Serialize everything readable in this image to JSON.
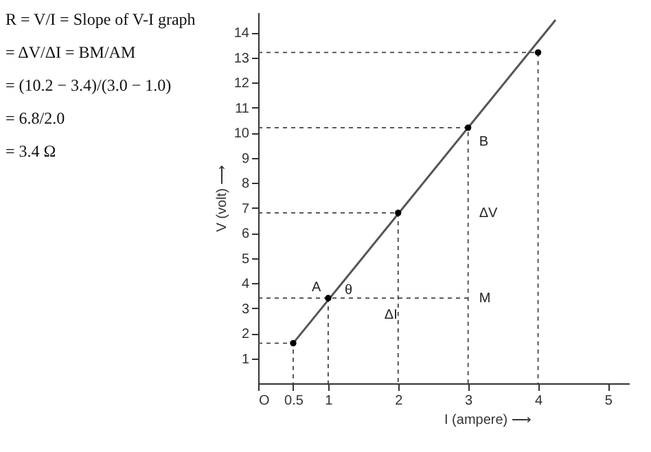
{
  "chart_data": {
    "type": "scatter",
    "xlabel": "I (ampere) ⟶",
    "ylabel": "V (volt) ⟶",
    "xlim": [
      0,
      5.3
    ],
    "ylim": [
      0,
      14.8
    ],
    "xticks": [
      {
        "value": 0,
        "label": "O"
      },
      0.5,
      1,
      2,
      3,
      4,
      5
    ],
    "yticks": [
      1,
      2,
      3,
      4,
      5,
      6,
      7,
      8,
      9,
      10,
      11,
      12,
      13,
      14
    ],
    "marker": "circle",
    "series": [
      {
        "type": "line",
        "color": "#555555",
        "marker": "none",
        "x": [
          0.5,
          4.25
        ],
        "values": [
          1.6,
          14.5
        ]
      },
      {
        "type": "line",
        "color": "#444444",
        "marker": "none",
        "line_style": "dashed",
        "x": [
          0,
          0.5,
          0.5
        ],
        "values": [
          1.6,
          1.6,
          0
        ]
      },
      {
        "type": "line",
        "color": "#444444",
        "marker": "none",
        "line_style": "dashed",
        "x": [
          0,
          3
        ],
        "values": [
          3.4,
          3.4
        ]
      },
      {
        "type": "line",
        "color": "#444444",
        "marker": "none",
        "line_style": "dashed",
        "x": [
          1,
          1
        ],
        "values": [
          3.4,
          0
        ]
      },
      {
        "type": "line",
        "color": "#444444",
        "marker": "none",
        "line_style": "dashed",
        "x": [
          0,
          2,
          2
        ],
        "values": [
          6.8,
          6.8,
          0
        ]
      },
      {
        "type": "line",
        "color": "#444444",
        "marker": "none",
        "line_style": "dashed",
        "x": [
          0,
          3,
          3
        ],
        "values": [
          10.2,
          10.2,
          0
        ]
      },
      {
        "type": "line",
        "color": "#444444",
        "marker": "none",
        "line_style": "dashed",
        "x": [
          0,
          4,
          4
        ],
        "values": [
          13.2,
          13.2,
          0
        ]
      },
      {
        "color": "#000000",
        "x": [
          0.5,
          1,
          2,
          3,
          4
        ],
        "values": [
          1.6,
          3.4,
          6.8,
          10.2,
          13.2
        ]
      }
    ],
    "annotations": [
      "R = V/I = Slope of V-I graph",
      "= ΔV/ΔI = BM/AM",
      "= (10.2 − 3.4)/(3.0 − 1.0)",
      "= 6.8/2.0",
      "= 3.4 Ω",
      {
        "text": "A",
        "x": 1,
        "y": 3.4
      },
      {
        "text": "θ",
        "x": 1,
        "y": 3.4
      },
      {
        "text": "B",
        "x": 3,
        "y": 10.2
      },
      {
        "text": "M",
        "x": 3,
        "y": 3.4
      },
      {
        "text": "ΔV",
        "x": 3,
        "y": 6.8
      },
      {
        "text": "ΔI",
        "x": 2,
        "y": 3.4
      }
    ]
  }
}
